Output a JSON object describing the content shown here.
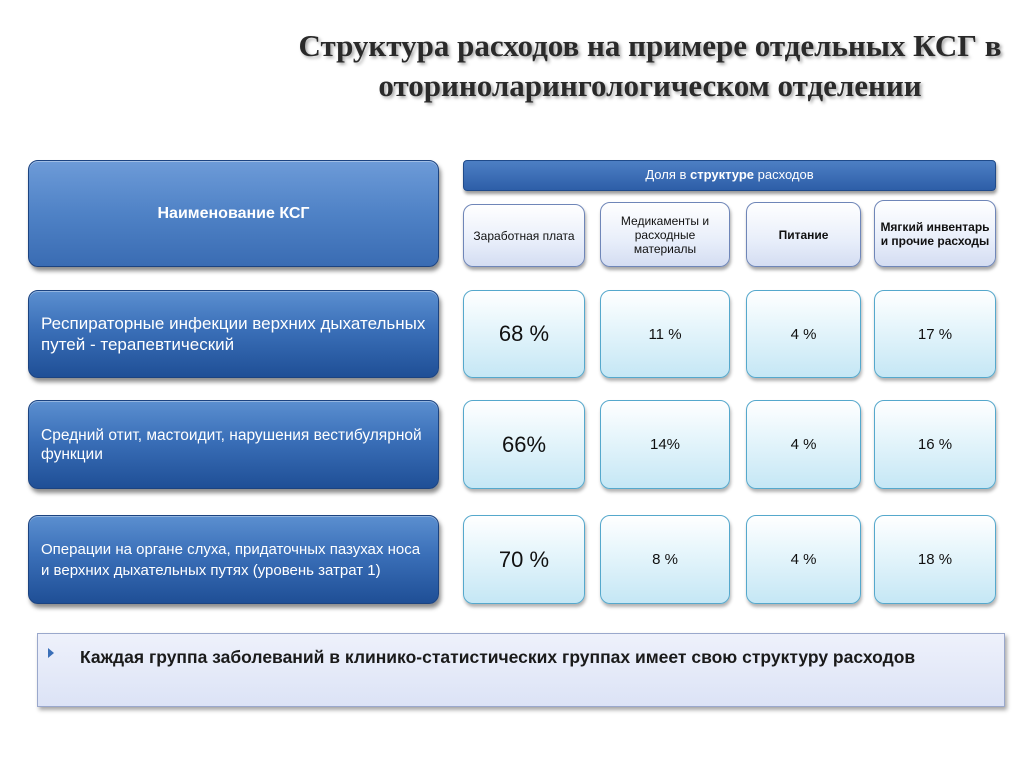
{
  "title": "Структура расходов на примере отдельных КСГ в оториноларингологическом отделении",
  "header": {
    "name_label": "Наименование КСГ",
    "share_prefix": "Доля в ",
    "share_bold": "структуре",
    "share_suffix": " расходов",
    "columns": [
      "Заработная плата",
      "Медикаменты и расходные материалы",
      "Питание",
      "Мягкий инвентарь и прочие расходы"
    ]
  },
  "rows": [
    {
      "label": "Респираторные инфекции верхних дыхательных путей  - терапевтический",
      "values": [
        "68 %",
        "11 %",
        "4 %",
        "17 %"
      ]
    },
    {
      "label": "Средний отит, мастоидит, нарушения вестибулярной функции",
      "values": [
        "66%",
        "14%",
        "4 %",
        "16 %"
      ]
    },
    {
      "label": "Операции на органе слуха, придаточных пазухах носа и верхних дыхательных путях (уровень затрат 1)",
      "values": [
        "70 %",
        "8 %",
        "4 %",
        "18 %"
      ]
    }
  ],
  "note": "Каждая группа заболеваний в клинико-статистических группах имеет свою структуру расходов"
}
